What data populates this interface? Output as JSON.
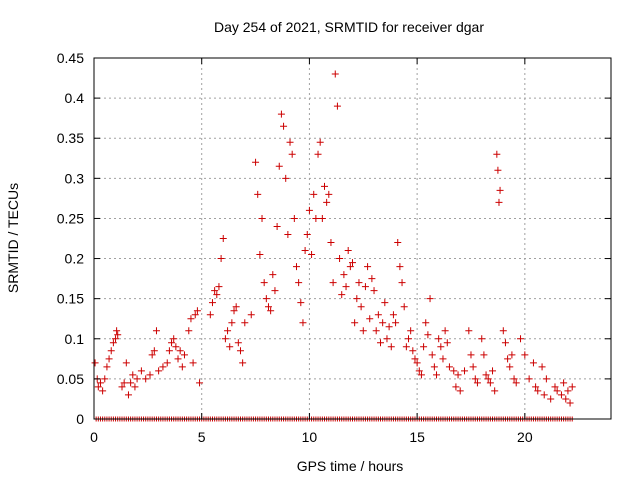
{
  "chart_data": {
    "type": "scatter",
    "title": "Day 254 of 2021, SRMTID for receiver dgar",
    "xlabel": "GPS time / hours",
    "ylabel": "SRMTID / TECUs",
    "xlim": [
      0,
      24
    ],
    "ylim": [
      0,
      0.45
    ],
    "xticks": [
      "0",
      "5",
      "10",
      "15",
      "20"
    ],
    "yticks": [
      "0",
      "0.05",
      "0.1",
      "0.15",
      "0.2",
      "0.25",
      "0.3",
      "0.35",
      "0.4",
      "0.45"
    ],
    "grid": true,
    "marker": "+",
    "color": "#cc0000",
    "series": [
      {
        "name": "SRMTID",
        "points": [
          [
            0.05,
            0.07
          ],
          [
            0.15,
            0.05
          ],
          [
            0.2,
            0.04
          ],
          [
            0.3,
            0.045
          ],
          [
            0.4,
            0.035
          ],
          [
            0.5,
            0.05
          ],
          [
            0.6,
            0.065
          ],
          [
            0.7,
            0.075
          ],
          [
            0.8,
            0.085
          ],
          [
            0.9,
            0.095
          ],
          [
            1.0,
            0.1
          ],
          [
            1.05,
            0.11
          ],
          [
            1.1,
            0.105
          ],
          [
            1.3,
            0.04
          ],
          [
            1.4,
            0.045
          ],
          [
            1.5,
            0.07
          ],
          [
            1.6,
            0.03
          ],
          [
            1.7,
            0.045
          ],
          [
            1.8,
            0.055
          ],
          [
            1.9,
            0.04
          ],
          [
            2.0,
            0.05
          ],
          [
            2.2,
            0.06
          ],
          [
            2.4,
            0.05
          ],
          [
            2.6,
            0.055
          ],
          [
            2.7,
            0.08
          ],
          [
            2.8,
            0.085
          ],
          [
            2.9,
            0.11
          ],
          [
            3.0,
            0.06
          ],
          [
            3.2,
            0.065
          ],
          [
            3.4,
            0.07
          ],
          [
            3.5,
            0.085
          ],
          [
            3.6,
            0.095
          ],
          [
            3.7,
            0.1
          ],
          [
            3.8,
            0.09
          ],
          [
            3.9,
            0.075
          ],
          [
            4.0,
            0.085
          ],
          [
            4.1,
            0.065
          ],
          [
            4.2,
            0.08
          ],
          [
            4.4,
            0.11
          ],
          [
            4.5,
            0.125
          ],
          [
            4.6,
            0.07
          ],
          [
            4.7,
            0.13
          ],
          [
            4.8,
            0.135
          ],
          [
            4.9,
            0.045
          ],
          [
            5.4,
            0.13
          ],
          [
            5.5,
            0.145
          ],
          [
            5.6,
            0.16
          ],
          [
            5.7,
            0.155
          ],
          [
            5.8,
            0.165
          ],
          [
            5.9,
            0.2
          ],
          [
            6.0,
            0.225
          ],
          [
            6.1,
            0.1
          ],
          [
            6.2,
            0.11
          ],
          [
            6.3,
            0.09
          ],
          [
            6.4,
            0.12
          ],
          [
            6.5,
            0.135
          ],
          [
            6.6,
            0.14
          ],
          [
            6.7,
            0.095
          ],
          [
            6.8,
            0.085
          ],
          [
            6.9,
            0.07
          ],
          [
            7.0,
            0.12
          ],
          [
            7.3,
            0.13
          ],
          [
            7.5,
            0.32
          ],
          [
            7.6,
            0.28
          ],
          [
            7.7,
            0.205
          ],
          [
            7.8,
            0.25
          ],
          [
            7.9,
            0.17
          ],
          [
            8.0,
            0.15
          ],
          [
            8.1,
            0.14
          ],
          [
            8.2,
            0.135
          ],
          [
            8.3,
            0.18
          ],
          [
            8.4,
            0.16
          ],
          [
            8.5,
            0.24
          ],
          [
            8.6,
            0.315
          ],
          [
            8.7,
            0.38
          ],
          [
            8.8,
            0.365
          ],
          [
            8.9,
            0.3
          ],
          [
            9.0,
            0.23
          ],
          [
            9.1,
            0.345
          ],
          [
            9.2,
            0.33
          ],
          [
            9.3,
            0.25
          ],
          [
            9.4,
            0.19
          ],
          [
            9.5,
            0.17
          ],
          [
            9.6,
            0.145
          ],
          [
            9.7,
            0.12
          ],
          [
            9.8,
            0.21
          ],
          [
            9.9,
            0.23
          ],
          [
            10.0,
            0.26
          ],
          [
            10.1,
            0.205
          ],
          [
            10.2,
            0.28
          ],
          [
            10.3,
            0.25
          ],
          [
            10.4,
            0.33
          ],
          [
            10.5,
            0.345
          ],
          [
            10.6,
            0.25
          ],
          [
            10.7,
            0.29
          ],
          [
            10.8,
            0.27
          ],
          [
            10.9,
            0.28
          ],
          [
            11.0,
            0.22
          ],
          [
            11.1,
            0.17
          ],
          [
            11.2,
            0.43
          ],
          [
            11.3,
            0.39
          ],
          [
            11.4,
            0.2
          ],
          [
            11.5,
            0.155
          ],
          [
            11.6,
            0.18
          ],
          [
            11.7,
            0.165
          ],
          [
            11.8,
            0.21
          ],
          [
            11.9,
            0.19
          ],
          [
            12.0,
            0.195
          ],
          [
            12.1,
            0.12
          ],
          [
            12.2,
            0.15
          ],
          [
            12.3,
            0.17
          ],
          [
            12.4,
            0.14
          ],
          [
            12.5,
            0.11
          ],
          [
            12.6,
            0.165
          ],
          [
            12.7,
            0.19
          ],
          [
            12.8,
            0.125
          ],
          [
            12.9,
            0.175
          ],
          [
            13.0,
            0.16
          ],
          [
            13.1,
            0.11
          ],
          [
            13.2,
            0.13
          ],
          [
            13.3,
            0.095
          ],
          [
            13.4,
            0.12
          ],
          [
            13.5,
            0.145
          ],
          [
            13.6,
            0.1
          ],
          [
            13.7,
            0.115
          ],
          [
            13.8,
            0.09
          ],
          [
            13.9,
            0.13
          ],
          [
            14.0,
            0.12
          ],
          [
            14.1,
            0.22
          ],
          [
            14.2,
            0.19
          ],
          [
            14.3,
            0.17
          ],
          [
            14.4,
            0.14
          ],
          [
            14.5,
            0.09
          ],
          [
            14.6,
            0.1
          ],
          [
            14.7,
            0.11
          ],
          [
            14.8,
            0.085
          ],
          [
            14.9,
            0.075
          ],
          [
            15.0,
            0.07
          ],
          [
            15.1,
            0.06
          ],
          [
            15.2,
            0.055
          ],
          [
            15.3,
            0.09
          ],
          [
            15.4,
            0.12
          ],
          [
            15.5,
            0.105
          ],
          [
            15.6,
            0.15
          ],
          [
            15.7,
            0.08
          ],
          [
            15.8,
            0.065
          ],
          [
            15.9,
            0.055
          ],
          [
            16.0,
            0.1
          ],
          [
            16.1,
            0.09
          ],
          [
            16.2,
            0.075
          ],
          [
            16.3,
            0.11
          ],
          [
            16.4,
            0.095
          ],
          [
            16.5,
            0.065
          ],
          [
            16.7,
            0.06
          ],
          [
            16.8,
            0.04
          ],
          [
            16.9,
            0.055
          ],
          [
            17.0,
            0.035
          ],
          [
            17.2,
            0.06
          ],
          [
            17.4,
            0.11
          ],
          [
            17.5,
            0.08
          ],
          [
            17.6,
            0.065
          ],
          [
            17.7,
            0.05
          ],
          [
            17.8,
            0.045
          ],
          [
            18.0,
            0.1
          ],
          [
            18.1,
            0.08
          ],
          [
            18.2,
            0.055
          ],
          [
            18.3,
            0.05
          ],
          [
            18.4,
            0.045
          ],
          [
            18.5,
            0.06
          ],
          [
            18.6,
            0.035
          ],
          [
            18.7,
            0.33
          ],
          [
            18.75,
            0.31
          ],
          [
            18.8,
            0.27
          ],
          [
            18.85,
            0.285
          ],
          [
            19.0,
            0.11
          ],
          [
            19.1,
            0.095
          ],
          [
            19.2,
            0.075
          ],
          [
            19.3,
            0.065
          ],
          [
            19.4,
            0.08
          ],
          [
            19.5,
            0.05
          ],
          [
            19.6,
            0.045
          ],
          [
            19.8,
            0.1
          ],
          [
            20.0,
            0.08
          ],
          [
            20.2,
            0.05
          ],
          [
            20.4,
            0.07
          ],
          [
            20.5,
            0.04
          ],
          [
            20.6,
            0.035
          ],
          [
            20.8,
            0.065
          ],
          [
            20.9,
            0.03
          ],
          [
            21.0,
            0.05
          ],
          [
            21.2,
            0.025
          ],
          [
            21.4,
            0.04
          ],
          [
            21.5,
            0.035
          ],
          [
            21.7,
            0.03
          ],
          [
            21.8,
            0.045
          ],
          [
            21.9,
            0.025
          ],
          [
            22.0,
            0.035
          ],
          [
            22.1,
            0.02
          ],
          [
            22.2,
            0.04
          ]
        ]
      }
    ]
  }
}
